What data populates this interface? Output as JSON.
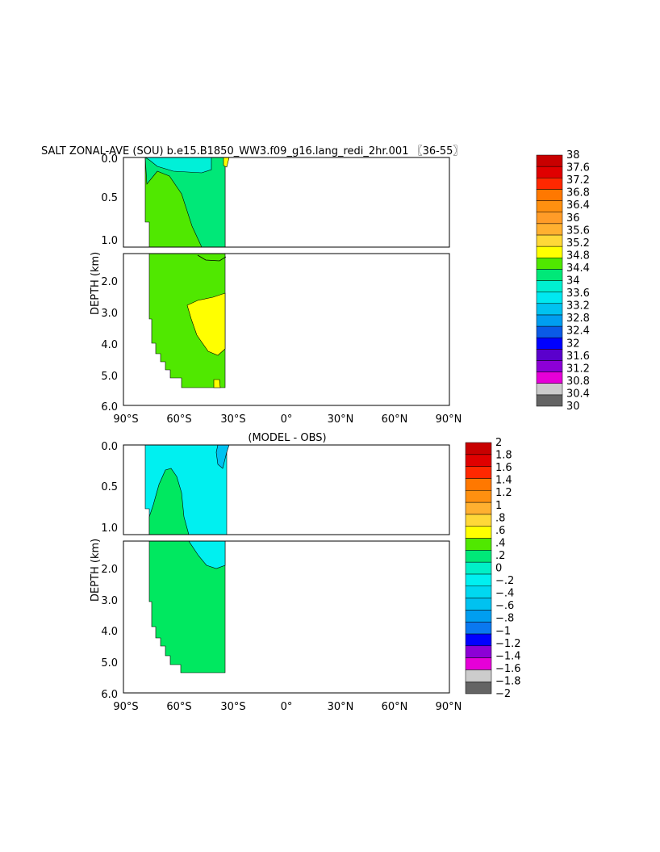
{
  "chart_data": [
    {
      "type": "heatmap",
      "title": "SALT ZONAL-AVE (SOU) b.e15.B1850_WW3.f09_g16.lang_redi_2hr.001 〖36-55〗",
      "ylabel": "DEPTH (km)",
      "xlim": [
        -90,
        90
      ],
      "x_ticks": [
        "90°S",
        "60°S",
        "30°S",
        "0°",
        "30°N",
        "60°N",
        "90°N"
      ],
      "y_ticks_upper": [
        "0.0",
        "0.5",
        "1.0"
      ],
      "y_ticks_lower": [
        "2.0",
        "3.0",
        "4.0",
        "5.0",
        "6.0"
      ],
      "colorbar_labels": [
        "38",
        "37.6",
        "37.2",
        "36.8",
        "36.4",
        "36",
        "35.6",
        "35.2",
        "34.8",
        "34.4",
        "34",
        "33.6",
        "33.2",
        "32.8",
        "32.4",
        "32",
        "31.6",
        "31.2",
        "30.8",
        "30.4",
        "30"
      ],
      "data_extent_lat": [
        -78,
        -33
      ],
      "dominant_value_range": [
        34.4,
        34.8
      ],
      "regions": [
        {
          "depth_km": [
            0,
            0.2
          ],
          "lat": [
            -75,
            -55
          ],
          "range": [
            33.6,
            34.0
          ]
        },
        {
          "depth_km": [
            0,
            1.1
          ],
          "lat": [
            -78,
            -33
          ],
          "range": [
            34.0,
            34.4
          ]
        },
        {
          "depth_km": [
            2.5,
            4.5
          ],
          "lat": [
            -50,
            -33
          ],
          "range": [
            34.8,
            35.2
          ]
        }
      ]
    },
    {
      "type": "heatmap",
      "title": "(MODEL - OBS)",
      "ylabel": "DEPTH (km)",
      "xlim": [
        -90,
        90
      ],
      "x_ticks": [
        "90°S",
        "60°S",
        "30°S",
        "0°",
        "30°N",
        "60°N",
        "90°N"
      ],
      "y_ticks_upper": [
        "0.0",
        "0.5",
        "1.0"
      ],
      "y_ticks_lower": [
        "2.0",
        "3.0",
        "4.0",
        "5.0",
        "6.0"
      ],
      "colorbar_labels": [
        "2",
        "1.8",
        "1.6",
        "1.4",
        "1.2",
        "1",
        ".8",
        ".6",
        ".4",
        ".2",
        "0",
        "−.2",
        "−.4",
        "−.6",
        "−.8",
        "−1",
        "−1.2",
        "−1.4",
        "−1.6",
        "−1.8",
        "−2"
      ],
      "data_extent_lat": [
        -78,
        -33
      ],
      "dominant_value_range": [
        0,
        0.2
      ],
      "regions": [
        {
          "depth_km": [
            0,
            1.1
          ],
          "lat": [
            -78,
            -33
          ],
          "range": [
            -0.2,
            0
          ]
        },
        {
          "depth_km": [
            0,
            0.1
          ],
          "lat": [
            -37,
            -33
          ],
          "range": [
            -0.8,
            -0.2
          ]
        }
      ]
    }
  ],
  "colors": {
    "scale": [
      "#646464",
      "#cccccc",
      "#e600d8",
      "#8c00d6",
      "#5a00cc",
      "#0000ff",
      "#0a5ae6",
      "#009ef0",
      "#00c2f0",
      "#00e8f0",
      "#00f0d0",
      "#00e878",
      "#00e050",
      "#50e800",
      "#b4f000",
      "#ffff00",
      "#ffd838",
      "#ffb030",
      "#ff9010",
      "#ff7800",
      "#ff2800",
      "#e00000",
      "#c80000"
    ],
    "salt_scale": [
      "#646464",
      "#cccccc",
      "#e600d8",
      "#8c00d6",
      "#5a00cc",
      "#0000ff",
      "#0a5ae6",
      "#009ef0",
      "#00c2f0",
      "#00e8f0",
      "#00f0d0",
      "#00e878",
      "#50e800",
      "#ffff00",
      "#ffd838",
      "#ffb030",
      "#ff9c28",
      "#ff9010",
      "#ff7800",
      "#ff2800",
      "#e00000",
      "#c80000"
    ],
    "diff_scale": [
      "#646464",
      "#cccccc",
      "#e600d8",
      "#8c00d6",
      "#0000ff",
      "#0a78f0",
      "#009ef0",
      "#00c2f0",
      "#00d8f0",
      "#00f0f0",
      "#00f0c8",
      "#00e878",
      "#50e800",
      "#ffff00",
      "#ffd838",
      "#ffb030",
      "#ff9010",
      "#ff7800",
      "#ff2800",
      "#e00000",
      "#c80000"
    ],
    "salt_main": "#50e800",
    "salt_fresh": "#00e878",
    "salt_fresher": "#00f0d8",
    "salt_high": "#ffff00",
    "diff_main": "#00e860",
    "diff_neg": "#00f0f0",
    "diff_neg2": "#00c2f0"
  }
}
